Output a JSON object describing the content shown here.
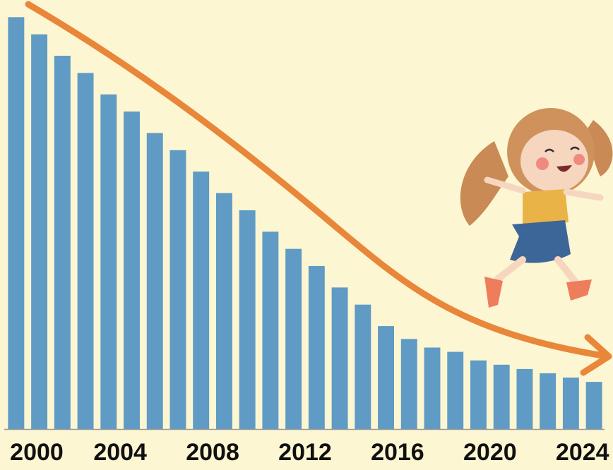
{
  "chart_data": {
    "type": "bar",
    "categories": [
      "2000",
      null,
      null,
      null,
      "2004",
      null,
      null,
      null,
      "2008",
      null,
      null,
      null,
      "2012",
      null,
      null,
      null,
      "2016",
      null,
      null,
      null,
      "2020",
      null,
      null,
      null,
      "2024",
      null
    ],
    "values": [
      96,
      92,
      87,
      83,
      78,
      74,
      69,
      65,
      60,
      55,
      51,
      46,
      42,
      38,
      33,
      29,
      24,
      21,
      19,
      18,
      16,
      15,
      14,
      13,
      12,
      11
    ],
    "color": "#5f9bc4",
    "ylim": [
      0,
      100
    ]
  }
}
